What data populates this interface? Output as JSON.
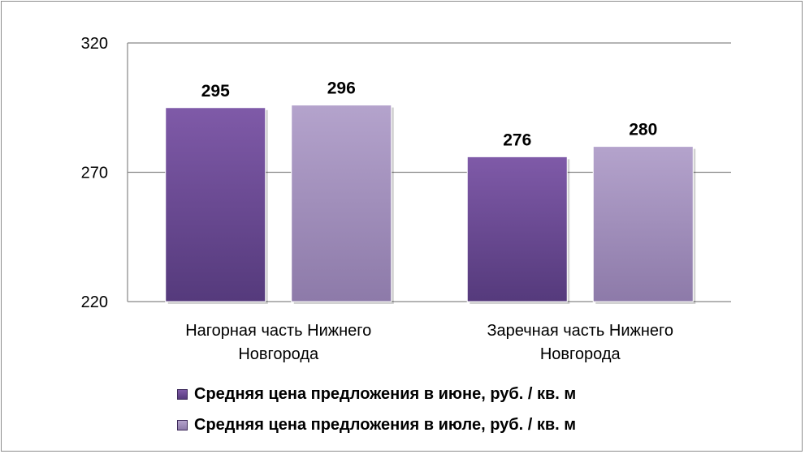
{
  "chart_data": {
    "type": "bar",
    "categories": [
      [
        "Нагорная часть Нижнего",
        "Новгорода"
      ],
      [
        "Заречная часть Нижнего",
        "Новгорода"
      ]
    ],
    "series": [
      {
        "name": "Средняя цена предложения в июне, руб. / кв. м",
        "values": [
          295,
          276
        ],
        "color": "#6f4b9a"
      },
      {
        "name": "Средняя цена предложения в июле, руб. / кв. м",
        "values": [
          296,
          280
        ],
        "color": "#a08cbd"
      }
    ],
    "ylim": [
      220,
      320
    ],
    "yticks": [
      "220",
      "270",
      "320"
    ],
    "grid": true,
    "legend_position": "bottom"
  }
}
